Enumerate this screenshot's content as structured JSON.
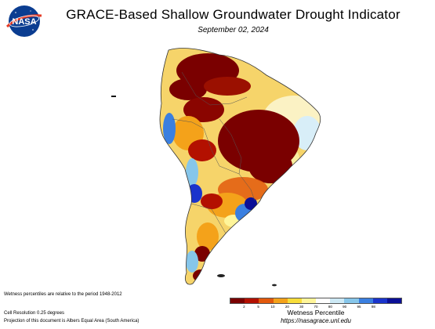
{
  "logo": {
    "text": "NASA"
  },
  "title": "GRACE-Based Shallow Groundwater Drought Indicator",
  "date": "September 02, 2024",
  "notes": {
    "period": "Wetness percentiles are relative to the period 1948-2012",
    "resolution": "Cell Resolution 0.25 degrees",
    "projection": "Projection of this document is Albers Equal Area (South America)"
  },
  "legend": {
    "title": "Wetness Percentile",
    "ticks": [
      "2",
      "5",
      "10",
      "20",
      "30",
      "70",
      "80",
      "90",
      "95",
      "98"
    ],
    "colors": [
      "#7a0000",
      "#b31000",
      "#e2590c",
      "#f4a21a",
      "#f8dd3a",
      "#fff59a",
      "#ffffff",
      "#cde9f5",
      "#86c6ea",
      "#3a7fe0",
      "#1a34cc",
      "#0b0f96"
    ]
  },
  "url": "https://nasagrace.unl.edu"
}
